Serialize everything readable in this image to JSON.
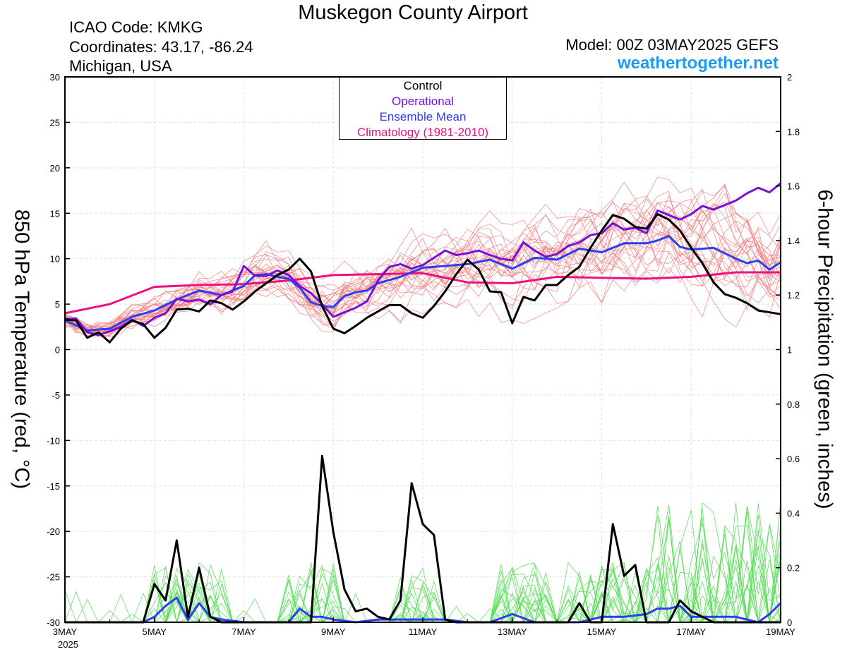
{
  "header": {
    "title": "Muskegon County Airport",
    "icao": "ICAO Code: KMKG",
    "coordinates": "Coordinates: 43.17, -86.24",
    "region": "Michigan, USA",
    "model": "Model: 00Z 03MAY2025 GEFS",
    "site": "weathertogether.net"
  },
  "legend": {
    "control": "Control",
    "operational": "Operational",
    "ensemble_mean": "Ensemble Mean",
    "climatology": "Climatology (1981-2010)"
  },
  "colors": {
    "control": "#000000",
    "operational": "#7a10d8",
    "ensemble_mean": "#2a3ff0",
    "climatology": "#ee1080",
    "members_temp": "#f08080",
    "members_precip": "#55dd55",
    "site": "#1e9af0"
  },
  "chart_data": {
    "type": "line",
    "xlabel": "",
    "ylabel_left": "850 hPa Temperature (red, °C)",
    "ylabel_right": "6-hour Precipitation (green, inches)",
    "x_ticks": [
      "3MAY",
      "5MAY",
      "7MAY",
      "9MAY",
      "11MAY",
      "13MAY",
      "15MAY",
      "17MAY",
      "19MAY"
    ],
    "x_year_label": "2025",
    "x_range_days": [
      0,
      16
    ],
    "y_left_range": [
      -30,
      30
    ],
    "y_left_ticks": [
      "30",
      "25",
      "20",
      "15",
      "10",
      "5",
      "0",
      "-5",
      "-10",
      "-15",
      "-20",
      "-25",
      "-30"
    ],
    "y_right_range": [
      0,
      2
    ],
    "y_right_ticks": [
      "2",
      "1.8",
      "1.6",
      "1.4",
      "1.2",
      "1",
      "0.8",
      "0.6",
      "0.4",
      "0.2",
      "0"
    ],
    "temperature": {
      "control": [
        [
          0,
          3.3
        ],
        [
          0.25,
          3.2
        ],
        [
          0.5,
          1.3
        ],
        [
          0.75,
          1.9
        ],
        [
          1,
          0.8
        ],
        [
          1.25,
          2.3
        ],
        [
          1.5,
          3.2
        ],
        [
          1.75,
          2.8
        ],
        [
          2,
          1.3
        ],
        [
          2.25,
          2.4
        ],
        [
          2.5,
          4.4
        ],
        [
          2.75,
          4.5
        ],
        [
          3,
          4.2
        ],
        [
          3.25,
          5.4
        ],
        [
          3.5,
          5.1
        ],
        [
          3.75,
          4.4
        ],
        [
          4,
          5.3
        ],
        [
          4.25,
          6.4
        ],
        [
          4.5,
          7.3
        ],
        [
          4.75,
          8.2
        ],
        [
          5,
          8.8
        ],
        [
          5.25,
          10
        ],
        [
          5.5,
          8.6
        ],
        [
          5.75,
          4.8
        ],
        [
          6,
          2.3
        ],
        [
          6.25,
          1.8
        ],
        [
          6.5,
          2.6
        ],
        [
          6.75,
          3.5
        ],
        [
          7,
          4.2
        ],
        [
          7.25,
          4.9
        ],
        [
          7.5,
          4.9
        ],
        [
          7.75,
          4.0
        ],
        [
          8,
          3.5
        ],
        [
          8.25,
          4.8
        ],
        [
          8.5,
          6.4
        ],
        [
          8.75,
          8.3
        ],
        [
          9,
          9.9
        ],
        [
          9.25,
          8.8
        ],
        [
          9.5,
          6.4
        ],
        [
          9.75,
          6.3
        ],
        [
          10,
          2.9
        ],
        [
          10.25,
          5.8
        ],
        [
          10.5,
          5.4
        ],
        [
          10.75,
          7.1
        ],
        [
          11,
          7.1
        ],
        [
          11.25,
          8.2
        ],
        [
          11.5,
          9.1
        ],
        [
          11.75,
          11.2
        ],
        [
          12,
          13.1
        ],
        [
          12.25,
          14.8
        ],
        [
          12.5,
          14.4
        ],
        [
          12.75,
          13.5
        ],
        [
          13,
          13.3
        ],
        [
          13.25,
          14.9
        ],
        [
          13.5,
          14.3
        ],
        [
          13.75,
          13.1
        ],
        [
          14,
          11.2
        ],
        [
          14.25,
          9.5
        ],
        [
          14.5,
          7.4
        ],
        [
          14.75,
          6.1
        ],
        [
          15,
          5.7
        ],
        [
          15.25,
          5.1
        ],
        [
          15.5,
          4.3
        ],
        [
          15.75,
          4.1
        ],
        [
          16,
          3.9
        ]
      ],
      "operational": [
        [
          0,
          3.4
        ],
        [
          0.25,
          3.4
        ],
        [
          0.5,
          1.9
        ],
        [
          0.75,
          1.6
        ],
        [
          1,
          2.0
        ],
        [
          1.25,
          2.5
        ],
        [
          1.5,
          3.3
        ],
        [
          1.75,
          2.6
        ],
        [
          2,
          3.5
        ],
        [
          2.25,
          4.0
        ],
        [
          2.5,
          5.6
        ],
        [
          2.75,
          5.3
        ],
        [
          3,
          5.5
        ],
        [
          3.25,
          5.0
        ],
        [
          3.5,
          6.0
        ],
        [
          3.75,
          6.4
        ],
        [
          4,
          9.2
        ],
        [
          4.25,
          8.1
        ],
        [
          4.5,
          8.1
        ],
        [
          4.75,
          8.7
        ],
        [
          5,
          8.2
        ],
        [
          5.25,
          7.0
        ],
        [
          5.5,
          6.2
        ],
        [
          5.75,
          5.0
        ],
        [
          6,
          3.6
        ],
        [
          6.25,
          4.1
        ],
        [
          6.5,
          4.6
        ],
        [
          6.75,
          5.3
        ],
        [
          7,
          7.6
        ],
        [
          7.25,
          9.1
        ],
        [
          7.5,
          9.4
        ],
        [
          7.75,
          8.9
        ],
        [
          8,
          9.3
        ],
        [
          8.25,
          10.1
        ],
        [
          8.5,
          10.9
        ],
        [
          8.75,
          10.4
        ],
        [
          9,
          10.6
        ],
        [
          9.25,
          10.9
        ],
        [
          9.5,
          10.4
        ],
        [
          9.75,
          10.0
        ],
        [
          10,
          9.8
        ],
        [
          10.25,
          11.8
        ],
        [
          10.5,
          10.9
        ],
        [
          10.75,
          10.2
        ],
        [
          11,
          10.5
        ],
        [
          11.25,
          11.4
        ],
        [
          11.5,
          11.8
        ],
        [
          11.75,
          12.6
        ],
        [
          12,
          12.8
        ],
        [
          12.25,
          13.9
        ],
        [
          12.5,
          13.2
        ],
        [
          12.75,
          13.4
        ],
        [
          13,
          12.8
        ],
        [
          13.25,
          15.3
        ],
        [
          13.5,
          14.8
        ],
        [
          13.75,
          14.3
        ],
        [
          14,
          14.9
        ],
        [
          14.25,
          15.8
        ],
        [
          14.5,
          15.4
        ],
        [
          14.75,
          15.9
        ],
        [
          15,
          16.4
        ],
        [
          15.25,
          17.2
        ],
        [
          15.5,
          17.8
        ],
        [
          15.75,
          17.3
        ],
        [
          16,
          18.3
        ]
      ],
      "ensemble_mean": [
        [
          0,
          3.2
        ],
        [
          0.5,
          2.1
        ],
        [
          1,
          2.3
        ],
        [
          1.5,
          3.6
        ],
        [
          2,
          4.3
        ],
        [
          2.5,
          5.5
        ],
        [
          3,
          6.5
        ],
        [
          3.5,
          6.0
        ],
        [
          4,
          7.0
        ],
        [
          4.25,
          8.2
        ],
        [
          4.5,
          8.3
        ],
        [
          4.75,
          8.0
        ],
        [
          5,
          7.8
        ],
        [
          5.25,
          6.8
        ],
        [
          5.5,
          5.2
        ],
        [
          5.75,
          4.8
        ],
        [
          6,
          4.7
        ],
        [
          6.25,
          5.9
        ],
        [
          6.5,
          6.3
        ],
        [
          6.75,
          6.5
        ],
        [
          7,
          7.3
        ],
        [
          7.5,
          8.0
        ],
        [
          8,
          9.0
        ],
        [
          8.5,
          9.2
        ],
        [
          9,
          9.4
        ],
        [
          9.5,
          9.9
        ],
        [
          10,
          8.9
        ],
        [
          10.5,
          10.1
        ],
        [
          11,
          9.9
        ],
        [
          11.5,
          11.1
        ],
        [
          12,
          10.7
        ],
        [
          12.5,
          11.7
        ],
        [
          13,
          11.7
        ],
        [
          13.25,
          12.0
        ],
        [
          13.5,
          12.5
        ],
        [
          13.75,
          11.3
        ],
        [
          14,
          11.0
        ],
        [
          14.5,
          11.2
        ],
        [
          15,
          10.0
        ],
        [
          15.25,
          9.5
        ],
        [
          15.5,
          9.8
        ],
        [
          15.75,
          8.8
        ],
        [
          16,
          9.6
        ]
      ],
      "climatology": [
        [
          0,
          4.0
        ],
        [
          1,
          5.0
        ],
        [
          2,
          6.9
        ],
        [
          3,
          7.1
        ],
        [
          4,
          7.2
        ],
        [
          5,
          7.6
        ],
        [
          6,
          8.2
        ],
        [
          7,
          8.3
        ],
        [
          8,
          8.4
        ],
        [
          9,
          7.4
        ],
        [
          10,
          7.3
        ],
        [
          11,
          8.0
        ],
        [
          12,
          7.9
        ],
        [
          13,
          7.8
        ],
        [
          14,
          8.0
        ],
        [
          15,
          8.5
        ],
        [
          16,
          8.5
        ]
      ]
    },
    "precipitation_6h": {
      "control": [
        [
          0,
          0
        ],
        [
          1.75,
          0
        ],
        [
          2,
          0.14
        ],
        [
          2.25,
          0.08
        ],
        [
          2.5,
          0.3
        ],
        [
          2.75,
          0.02
        ],
        [
          3,
          0.2
        ],
        [
          3.25,
          0.02
        ],
        [
          3.5,
          0
        ],
        [
          5.5,
          0
        ],
        [
          5.75,
          0.61
        ],
        [
          6,
          0.33
        ],
        [
          6.25,
          0.12
        ],
        [
          6.5,
          0.04
        ],
        [
          6.75,
          0.05
        ],
        [
          7,
          0.02
        ],
        [
          7.25,
          0.01
        ],
        [
          7.5,
          0.08
        ],
        [
          7.75,
          0.51
        ],
        [
          8,
          0.36
        ],
        [
          8.25,
          0.32
        ],
        [
          8.5,
          0.01
        ],
        [
          8.75,
          0
        ],
        [
          10,
          0
        ],
        [
          10.5,
          0
        ],
        [
          11,
          0
        ],
        [
          11.25,
          0
        ],
        [
          11.5,
          0.07
        ],
        [
          11.75,
          0
        ],
        [
          12,
          0
        ],
        [
          12.25,
          0.36
        ],
        [
          12.5,
          0.17
        ],
        [
          12.75,
          0.21
        ],
        [
          13,
          0
        ],
        [
          13.25,
          0
        ],
        [
          13.5,
          0
        ],
        [
          13.75,
          0.08
        ],
        [
          14,
          0.04
        ],
        [
          14.25,
          0.02
        ],
        [
          14.5,
          0
        ],
        [
          16,
          0
        ]
      ],
      "ensemble_mean": [
        [
          0,
          0
        ],
        [
          1.75,
          0
        ],
        [
          2,
          0.02
        ],
        [
          2.25,
          0.06
        ],
        [
          2.5,
          0.09
        ],
        [
          2.75,
          0.01
        ],
        [
          3,
          0.07
        ],
        [
          3.25,
          0.02
        ],
        [
          3.5,
          0.01
        ],
        [
          4,
          0
        ],
        [
          5,
          0
        ],
        [
          5.25,
          0.05
        ],
        [
          5.5,
          0.02
        ],
        [
          5.75,
          0.02
        ],
        [
          6,
          0.01
        ],
        [
          6.5,
          0
        ],
        [
          7,
          0.01
        ],
        [
          7.5,
          0.01
        ],
        [
          8,
          0.01
        ],
        [
          8.5,
          0.01
        ],
        [
          9,
          0
        ],
        [
          9.5,
          0
        ],
        [
          10,
          0.03
        ],
        [
          10.5,
          0
        ],
        [
          11,
          0
        ],
        [
          11.5,
          0
        ],
        [
          12,
          0.02
        ],
        [
          12.5,
          0.02
        ],
        [
          13,
          0.03
        ],
        [
          13.25,
          0.05
        ],
        [
          13.5,
          0.05
        ],
        [
          13.75,
          0.06
        ],
        [
          14,
          0.02
        ],
        [
          14.5,
          0.02
        ],
        [
          15,
          0.02
        ],
        [
          15.5,
          0
        ],
        [
          15.75,
          0.03
        ],
        [
          16,
          0.07
        ]
      ]
    }
  }
}
